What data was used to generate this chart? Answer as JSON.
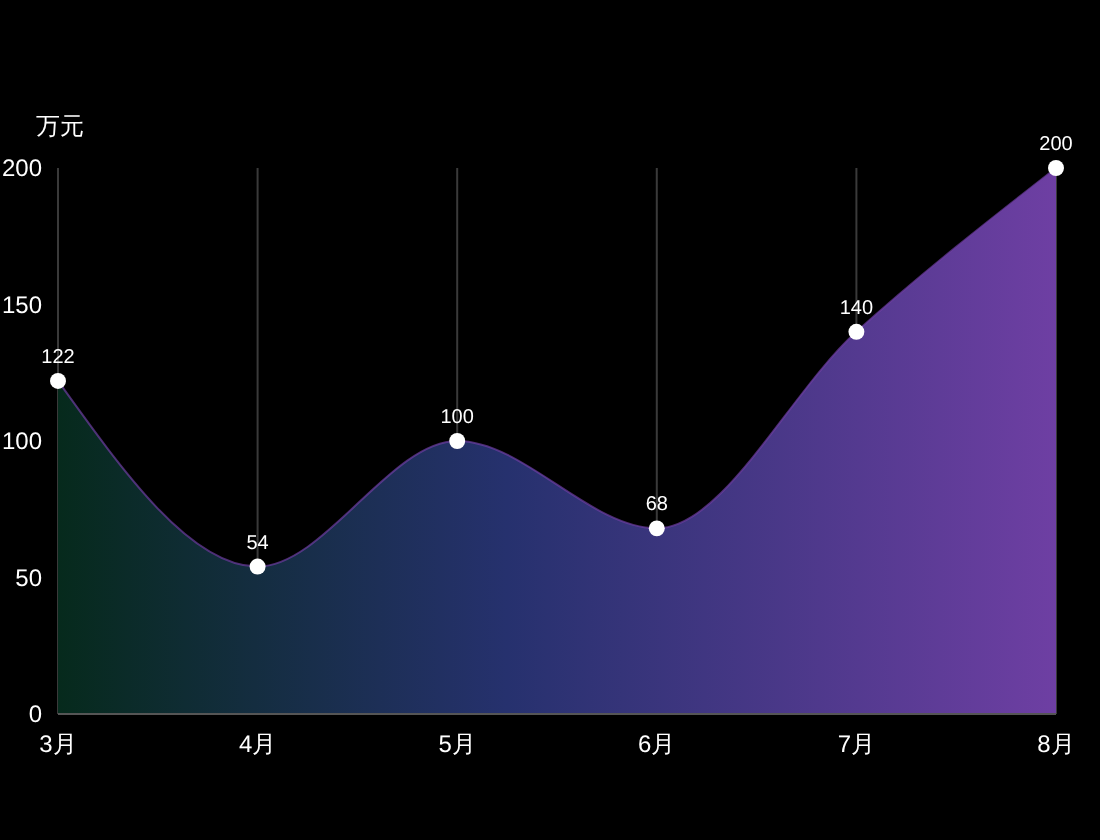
{
  "chart_data": {
    "type": "area",
    "ylabel": "万元",
    "categories": [
      "3月",
      "4月",
      "5月",
      "6月",
      "7月",
      "8月"
    ],
    "series": [
      {
        "color": "#6e3fa3",
        "values": [
          122,
          54,
          100,
          68,
          140,
          200
        ]
      }
    ],
    "ylim": [
      0,
      200
    ],
    "yticks": [
      0,
      50,
      100,
      150,
      200
    ],
    "grid": "x",
    "marker": "circle",
    "data_labels": true
  }
}
